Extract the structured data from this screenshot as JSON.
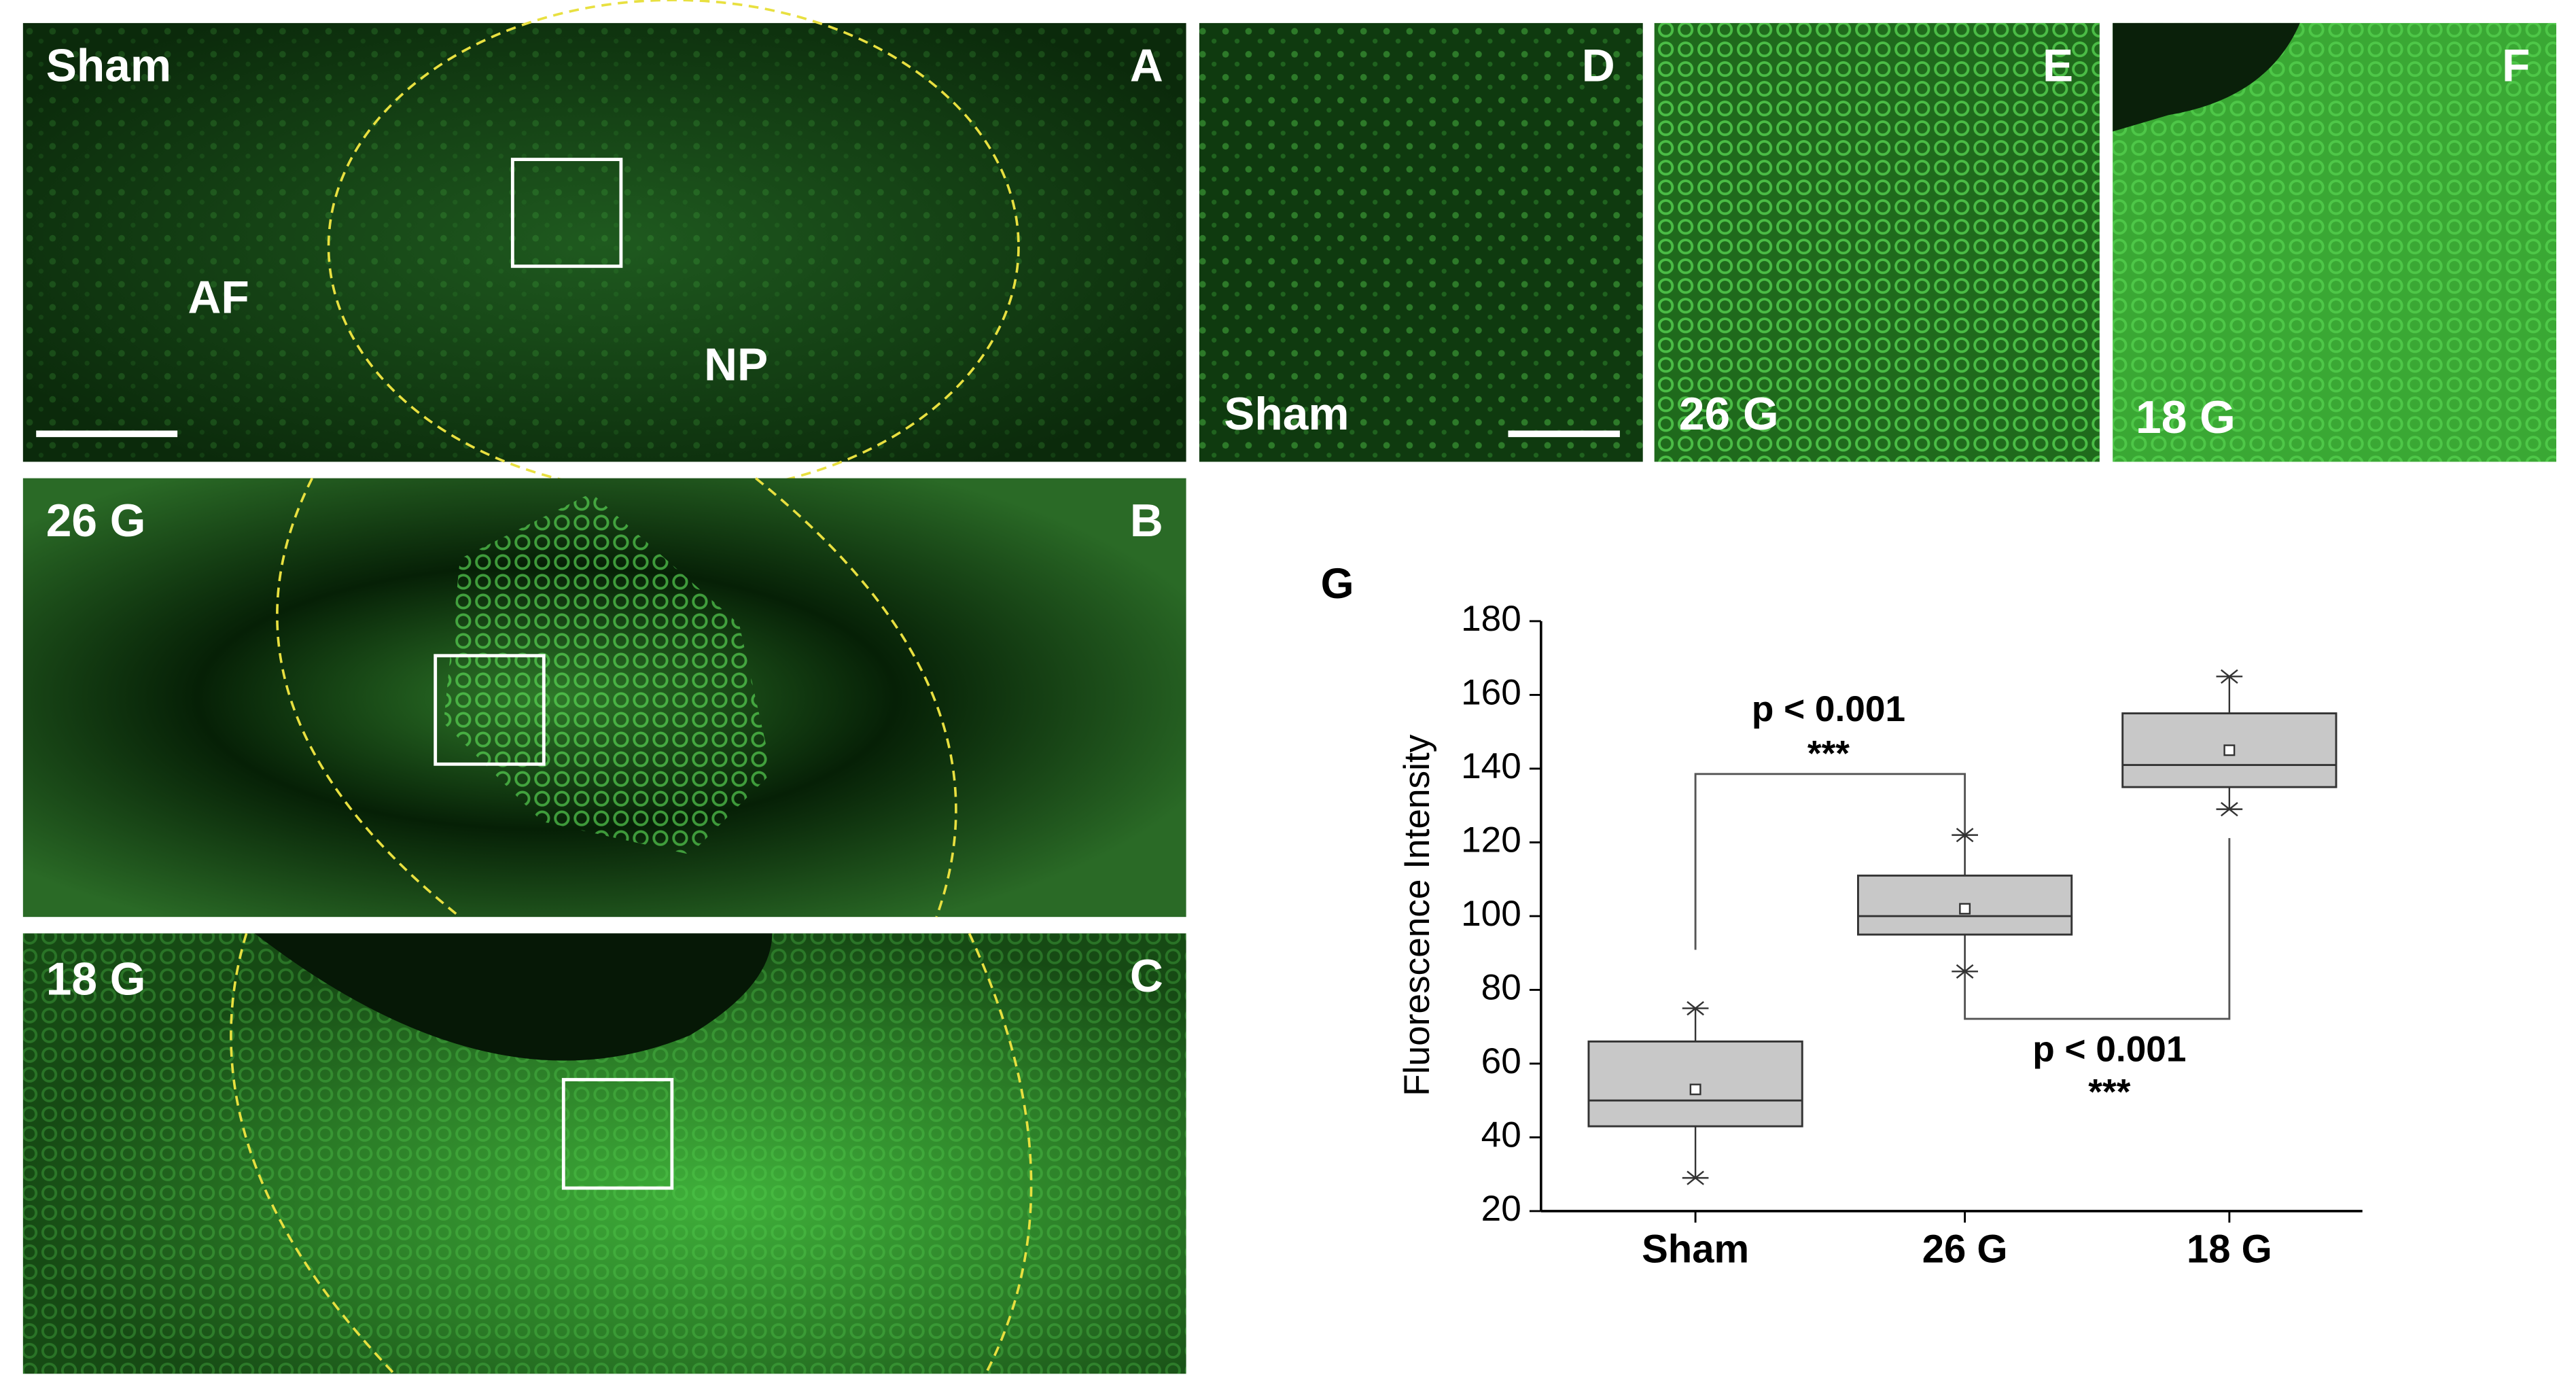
{
  "panels": [
    {
      "label": "A",
      "group": "Sham",
      "marks": [
        "AF",
        "NP"
      ]
    },
    {
      "label": "B",
      "group": "26 G"
    },
    {
      "label": "C",
      "group": "18 G"
    },
    {
      "label": "D",
      "group": "Sham"
    },
    {
      "label": "E",
      "group": "26 G"
    },
    {
      "label": "F",
      "group": "18 G"
    }
  ],
  "chart_data": {
    "type": "box",
    "panel_label": "G",
    "y_label": "Fluorescence Intensity",
    "categories": [
      "Sham",
      "26 G",
      "18 G"
    ],
    "whisker_low": [
      29,
      85,
      129
    ],
    "q1": [
      43,
      95,
      135
    ],
    "median": [
      50,
      100,
      141
    ],
    "q3": [
      66,
      111,
      155
    ],
    "whisker_high": [
      75,
      122,
      165
    ],
    "mean": [
      53,
      102,
      145
    ],
    "color": "#c8c8c8",
    "ylim": [
      20,
      180
    ],
    "yticks": [
      20,
      40,
      60,
      80,
      100,
      120,
      140,
      160,
      180
    ],
    "annotations": [
      {
        "text": "p < 0.001",
        "stars": "***"
      },
      {
        "text": "p < 0.001",
        "stars": "***"
      }
    ]
  }
}
